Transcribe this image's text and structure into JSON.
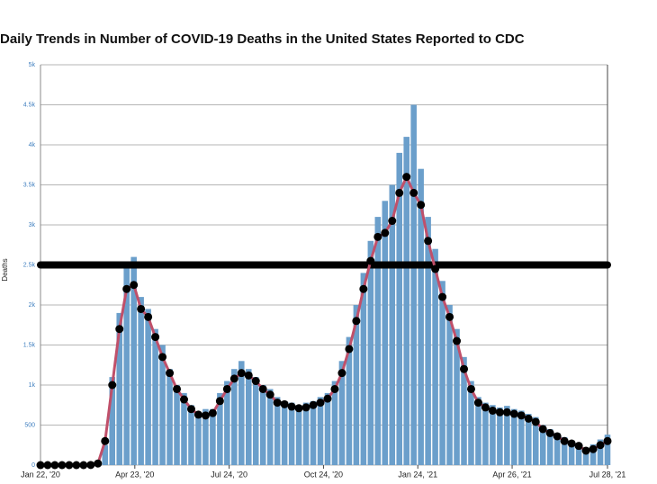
{
  "chart_data": {
    "type": "bar-line",
    "title": "Daily Trends in Number of COVID-19 Deaths in the United States Reported to CDC",
    "y_label": "Deaths",
    "x": [
      "2020-01-22",
      "2020-01-29",
      "2020-02-05",
      "2020-02-12",
      "2020-02-19",
      "2020-02-26",
      "2020-03-04",
      "2020-03-11",
      "2020-03-18",
      "2020-03-25",
      "2020-04-01",
      "2020-04-08",
      "2020-04-15",
      "2020-04-22",
      "2020-04-29",
      "2020-05-06",
      "2020-05-13",
      "2020-05-20",
      "2020-05-27",
      "2020-06-03",
      "2020-06-10",
      "2020-06-17",
      "2020-06-24",
      "2020-07-01",
      "2020-07-08",
      "2020-07-15",
      "2020-07-22",
      "2020-07-29",
      "2020-08-05",
      "2020-08-12",
      "2020-08-19",
      "2020-08-26",
      "2020-09-02",
      "2020-09-09",
      "2020-09-16",
      "2020-09-23",
      "2020-09-30",
      "2020-10-07",
      "2020-10-14",
      "2020-10-21",
      "2020-10-28",
      "2020-11-04",
      "2020-11-11",
      "2020-11-18",
      "2020-11-25",
      "2020-12-02",
      "2020-12-09",
      "2020-12-16",
      "2020-12-23",
      "2020-12-30",
      "2021-01-06",
      "2021-01-13",
      "2021-01-20",
      "2021-01-27",
      "2021-02-03",
      "2021-02-10",
      "2021-02-17",
      "2021-02-24",
      "2021-03-03",
      "2021-03-10",
      "2021-03-17",
      "2021-03-24",
      "2021-03-31",
      "2021-04-07",
      "2021-04-14",
      "2021-04-21",
      "2021-04-28",
      "2021-05-05",
      "2021-05-12",
      "2021-05-19",
      "2021-05-26",
      "2021-06-02",
      "2021-06-09",
      "2021-06-16",
      "2021-06-23",
      "2021-06-30",
      "2021-07-07",
      "2021-07-14",
      "2021-07-21",
      "2021-07-28"
    ],
    "bars": {
      "color": "#6b9fcb",
      "values": [
        0,
        0,
        0,
        0,
        0,
        0,
        0,
        3,
        40,
        250,
        1100,
        1900,
        2500,
        2600,
        2100,
        1950,
        1700,
        1500,
        1200,
        1000,
        900,
        750,
        650,
        700,
        700,
        900,
        1050,
        1200,
        1300,
        1200,
        1100,
        1000,
        950,
        850,
        800,
        780,
        750,
        780,
        800,
        850,
        900,
        1050,
        1300,
        1600,
        2000,
        2400,
        2800,
        3100,
        3300,
        3500,
        3900,
        4100,
        4500,
        3700,
        3100,
        2700,
        2300,
        2000,
        1700,
        1350,
        1050,
        850,
        780,
        750,
        720,
        740,
        700,
        680,
        640,
        600,
        500,
        450,
        400,
        350,
        300,
        280,
        220,
        260,
        320,
        380
      ]
    },
    "average": {
      "color": "#c0506a",
      "marker_color": "#000000",
      "values": [
        0,
        0,
        0,
        0,
        0,
        0,
        0,
        2,
        20,
        300,
        1000,
        1700,
        2200,
        2250,
        1950,
        1850,
        1600,
        1350,
        1150,
        950,
        820,
        700,
        630,
        620,
        650,
        800,
        950,
        1080,
        1150,
        1120,
        1050,
        950,
        880,
        780,
        760,
        730,
        710,
        720,
        750,
        780,
        830,
        950,
        1150,
        1450,
        1800,
        2200,
        2550,
        2850,
        2900,
        3050,
        3400,
        3600,
        3400,
        3250,
        2800,
        2450,
        2100,
        1850,
        1550,
        1200,
        950,
        780,
        720,
        680,
        660,
        660,
        640,
        620,
        580,
        540,
        450,
        400,
        360,
        300,
        270,
        240,
        180,
        200,
        250,
        300
      ]
    },
    "reference_line": 2500,
    "reference_color": "#000000",
    "xlim": [
      "2020-01-22",
      "2021-07-28"
    ],
    "xticks": [
      {
        "value": "2020-01-22",
        "label": "Jan 22, '20"
      },
      {
        "value": "2020-04-23",
        "label": "Apr 23, '20"
      },
      {
        "value": "2020-07-24",
        "label": "Jul 24, '20"
      },
      {
        "value": "2020-10-24",
        "label": "Oct 24, '20"
      },
      {
        "value": "2021-01-24",
        "label": "Jan 24, '21"
      },
      {
        "value": "2021-04-26",
        "label": "Apr 26, '21"
      },
      {
        "value": "2021-07-28",
        "label": "Jul 28, '21"
      }
    ],
    "ylim": [
      0,
      5000
    ],
    "yticks": [
      0,
      500,
      {
        "value": 1000,
        "label": "1k"
      },
      {
        "value": 1500,
        "label": "1.5k"
      },
      {
        "value": 2000,
        "label": "2k"
      },
      {
        "value": 2500,
        "label": "2.5k"
      },
      {
        "value": 3000,
        "label": "3k"
      },
      {
        "value": 3500,
        "label": "3.5k"
      },
      {
        "value": 4000,
        "label": "4k"
      },
      {
        "value": 4500,
        "label": "4.5k"
      },
      {
        "value": 5000,
        "label": "5k"
      }
    ],
    "grid": true
  }
}
